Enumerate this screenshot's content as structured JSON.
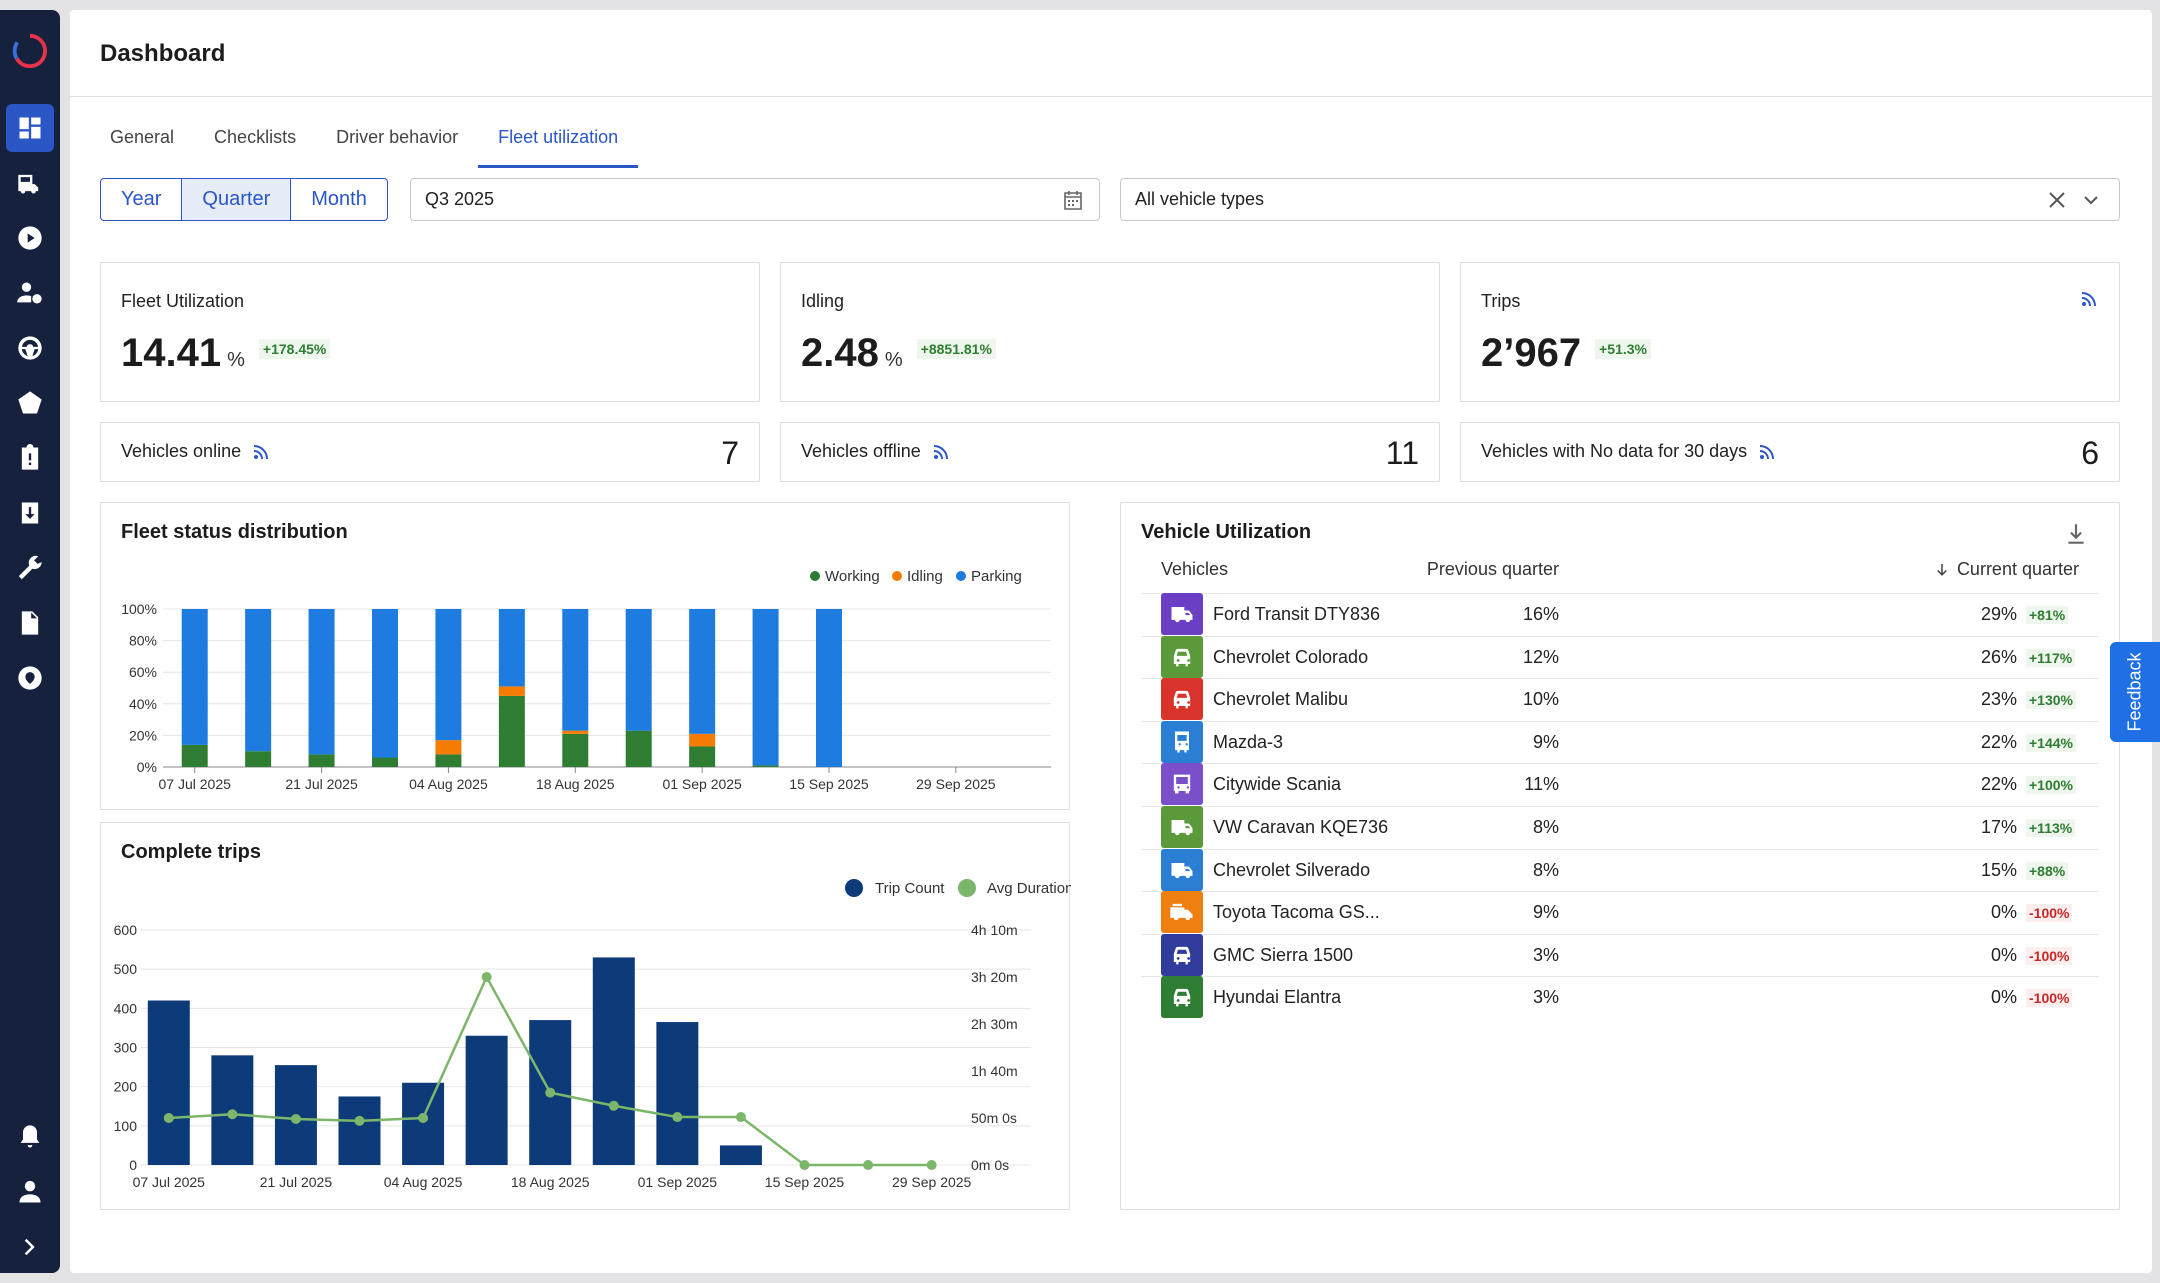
{
  "page": {
    "title": "Dashboard"
  },
  "tabs": [
    "General",
    "Checklists",
    "Driver behavior",
    "Fleet utilization"
  ],
  "filters": {
    "period_buttons": [
      "Year",
      "Quarter",
      "Month"
    ],
    "selected_period": "Quarter",
    "date_value": "Q3 2025",
    "vehicle_type_value": "All vehicle types"
  },
  "kpis": {
    "fleet_utilization": {
      "label": "Fleet Utilization",
      "value": "14.41",
      "unit": "%",
      "delta": "+178.45%"
    },
    "idling": {
      "label": "Idling",
      "value": "2.48",
      "unit": "%",
      "delta": "+8851.81%"
    },
    "trips": {
      "label": "Trips",
      "value": "2’967",
      "delta": "+51.3%"
    }
  },
  "counters": {
    "online": {
      "label": "Vehicles online",
      "value": "7"
    },
    "offline": {
      "label": "Vehicles offline",
      "value": "11"
    },
    "nodata": {
      "label": "Vehicles with No data for 30 days",
      "value": "6"
    }
  },
  "fleet_status": {
    "title": "Fleet status distribution",
    "legend": {
      "working": "Working",
      "idling": "Idling",
      "parking": "Parking"
    }
  },
  "complete_trips": {
    "title": "Complete trips",
    "legend": {
      "trip_count": "Trip Count",
      "avg_duration": "Avg Duration"
    }
  },
  "vehicle_utilization": {
    "title": "Vehicle Utilization",
    "headers": {
      "vehicles": "Vehicles",
      "previous": "Previous quarter",
      "current": "Current quarter"
    },
    "rows": [
      {
        "name": "Ford Transit DTY836",
        "prev": "16%",
        "cur": "29%",
        "change": "+81%",
        "color": "#6a3fc3",
        "icon": "truck-fast-icon"
      },
      {
        "name": "Chevrolet Colorado",
        "prev": "12%",
        "cur": "26%",
        "change": "+117%",
        "color": "#5a9a3a",
        "icon": "car-icon"
      },
      {
        "name": "Chevrolet Malibu",
        "prev": "10%",
        "cur": "23%",
        "change": "+130%",
        "color": "#d9342b",
        "icon": "car-icon"
      },
      {
        "name": "Mazda-3",
        "prev": "9%",
        "cur": "22%",
        "change": "+144%",
        "color": "#2a7fd4",
        "icon": "bus-side-icon"
      },
      {
        "name": "Citywide Scania",
        "prev": "11%",
        "cur": "22%",
        "change": "+100%",
        "color": "#7b4fc9",
        "icon": "bus-icon"
      },
      {
        "name": "VW Caravan KQE736",
        "prev": "8%",
        "cur": "17%",
        "change": "+113%",
        "color": "#5a9a3a",
        "icon": "truck-fast-icon"
      },
      {
        "name": "Chevrolet Silverado",
        "prev": "8%",
        "cur": "15%",
        "change": "+88%",
        "color": "#2a7fd4",
        "icon": "truck-fast-icon"
      },
      {
        "name": "Toyota Tacoma GS...",
        "prev": "9%",
        "cur": "0%",
        "change": "-100%",
        "color": "#f07f12",
        "icon": "fire-truck-icon"
      },
      {
        "name": "GMC Sierra 1500",
        "prev": "3%",
        "cur": "0%",
        "change": "-100%",
        "color": "#2f3c9c",
        "icon": "car-icon"
      },
      {
        "name": "Hyundai Elantra",
        "prev": "3%",
        "cur": "0%",
        "change": "-100%",
        "color": "#2e7d32",
        "icon": "car-icon"
      }
    ]
  },
  "feedback": {
    "label": "Feedback"
  },
  "colors": {
    "accent": "#2a56c6",
    "working": "#2e7d32",
    "idling": "#f57c00",
    "parking": "#1e7be0",
    "trip_bar": "#0d3b7a",
    "duration_line": "#7cb66a"
  },
  "chart_data": [
    {
      "type": "bar",
      "stacked": true,
      "categories": [
        "07 Jul 2025",
        "14 Jul 2025",
        "21 Jul 2025",
        "28 Jul 2025",
        "04 Aug 2025",
        "11 Aug 2025",
        "18 Aug 2025",
        "25 Aug 2025",
        "01 Sep 2025",
        "08 Sep 2025",
        "15 Sep 2025",
        "22 Sep 2025",
        "29 Sep 2025",
        "06 Oct 2025"
      ],
      "x_tick_labels": [
        "07 Jul 2025",
        "21 Jul 2025",
        "04 Aug 2025",
        "18 Aug 2025",
        "01 Sep 2025",
        "15 Sep 2025",
        "29 Sep 2025"
      ],
      "series": [
        {
          "name": "Working",
          "values": [
            14,
            10,
            8,
            6,
            8,
            45,
            21,
            23,
            13,
            1,
            0,
            0,
            0,
            0
          ]
        },
        {
          "name": "Idling",
          "values": [
            0,
            0,
            0,
            0,
            9,
            6,
            2,
            0,
            8,
            0,
            0,
            0,
            0,
            0
          ]
        },
        {
          "name": "Parking",
          "values": [
            86,
            90,
            92,
            94,
            83,
            49,
            77,
            77,
            79,
            99,
            100,
            0,
            0,
            0
          ]
        }
      ],
      "y_tick_labels": [
        "0%",
        "20%",
        "40%",
        "60%",
        "80%",
        "100%"
      ],
      "ylim": [
        0,
        100
      ],
      "grid": true,
      "legend_position": "top-right"
    },
    {
      "type": "bar",
      "categories": [
        "07 Jul 2025",
        "14 Jul 2025",
        "21 Jul 2025",
        "28 Jul 2025",
        "04 Aug 2025",
        "11 Aug 2025",
        "18 Aug 2025",
        "25 Aug 2025",
        "01 Sep 2025",
        "08 Sep 2025",
        "15 Sep 2025",
        "22 Sep 2025",
        "29 Sep 2025",
        "06 Oct 2025"
      ],
      "x_tick_labels": [
        "07 Jul 2025",
        "21 Jul 2025",
        "04 Aug 2025",
        "18 Aug 2025",
        "01 Sep 2025",
        "15 Sep 2025",
        "29 Sep 2025"
      ],
      "series": [
        {
          "name": "Trip Count",
          "type": "bar",
          "axis": "left",
          "values": [
            420,
            280,
            255,
            175,
            210,
            330,
            370,
            530,
            365,
            50,
            0,
            0,
            0,
            0
          ]
        },
        {
          "name": "Avg Duration",
          "type": "line",
          "axis": "right",
          "values_minutes": [
            50,
            54,
            49,
            47,
            50,
            200,
            77,
            63,
            51,
            51,
            0,
            0,
            0,
            0
          ]
        }
      ],
      "y_left_tick_labels": [
        "0",
        "100",
        "200",
        "300",
        "400",
        "500",
        "600"
      ],
      "y_left_lim": [
        0,
        600
      ],
      "y_right_tick_labels": [
        "0m 0s",
        "50m 0s",
        "1h 40m",
        "2h 30m",
        "3h 20m",
        "4h 10m"
      ],
      "y_right_lim_minutes": [
        0,
        250
      ],
      "grid": true,
      "legend_position": "top-right"
    }
  ]
}
